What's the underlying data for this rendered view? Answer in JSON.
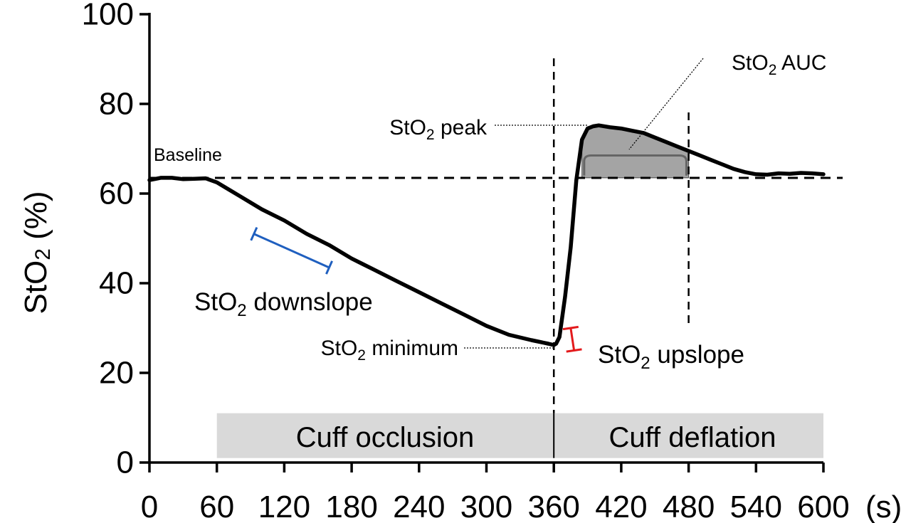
{
  "chart_data": {
    "type": "line",
    "title": "",
    "xlabel": "",
    "x_unit": "(s)",
    "ylabel": "StO",
    "ylabel_sub": "2",
    "ylabel_suffix": " (%)",
    "xlim": [
      0,
      600
    ],
    "ylim": [
      0,
      100
    ],
    "x_ticks": [
      0,
      60,
      120,
      180,
      240,
      300,
      360,
      420,
      480,
      540,
      600
    ],
    "x_tick_labels": [
      "0",
      "60",
      "120",
      "180",
      "240",
      "300",
      "360",
      "420",
      "480",
      "540",
      "600"
    ],
    "y_ticks": [
      0,
      20,
      40,
      60,
      80,
      100
    ],
    "y_tick_labels": [
      "0",
      "20",
      "40",
      "60",
      "80",
      "100"
    ],
    "grid": false,
    "series": [
      {
        "name": "StO2",
        "color": "#000000",
        "x": [
          0,
          10,
          20,
          30,
          40,
          50,
          60,
          70,
          80,
          90,
          100,
          120,
          140,
          160,
          180,
          200,
          220,
          240,
          260,
          280,
          300,
          320,
          340,
          355,
          360,
          362,
          365,
          370,
          375,
          380,
          385,
          390,
          395,
          400,
          410,
          420,
          430,
          440,
          450,
          460,
          470,
          480,
          490,
          500,
          510,
          520,
          530,
          540,
          550,
          560,
          570,
          580,
          590,
          600
        ],
        "y": [
          63,
          63.5,
          63.5,
          63.2,
          63.3,
          63.4,
          62.5,
          61,
          59.5,
          58,
          56.5,
          54,
          51,
          48.5,
          45.5,
          43,
          40.5,
          38,
          35.5,
          33,
          30.5,
          28.5,
          27.3,
          26.5,
          26.2,
          26.5,
          28,
          37,
          48,
          63,
          72,
          74.5,
          75,
          75.2,
          74.8,
          74.5,
          74,
          73.5,
          72.5,
          71.5,
          70.5,
          69.5,
          68.5,
          67.5,
          66.5,
          65.5,
          64.8,
          64.3,
          64.2,
          64.5,
          64.4,
          64.6,
          64.5,
          64.3
        ]
      }
    ],
    "baseline_value": 63.5,
    "reference_lines_x": [
      360,
      480
    ],
    "auc_region": {
      "x_start": 385,
      "x_end": 480,
      "floor": 63.5
    },
    "downslope_segment": {
      "x": [
        93,
        160
      ],
      "y": [
        51,
        43.5
      ],
      "color": "#1f5fbf"
    },
    "upslope_marker": {
      "x": [
        375,
        378
      ],
      "y": [
        30,
        25
      ],
      "color": "#e31a1c"
    },
    "bands": [
      {
        "label": "Cuff occlusion",
        "x_start": 60,
        "x_end": 360,
        "y_bottom": 1,
        "y_top": 11,
        "color": "#d9d9d9"
      },
      {
        "label": "Cuff deflation",
        "x_start": 360,
        "x_end": 600,
        "y_bottom": 1,
        "y_top": 11,
        "color": "#d9d9d9"
      }
    ],
    "annotations": {
      "baseline": "Baseline",
      "downslope_main": "StO",
      "downslope_sub": "2",
      "downslope_rest": " downslope",
      "minimum_main": "StO",
      "minimum_sub": "2",
      "minimum_rest": " minimum",
      "upslope_main": "StO",
      "upslope_sub": "2",
      "upslope_rest": " upslope",
      "peak_main": "StO",
      "peak_sub": "2",
      "peak_rest": " peak",
      "auc_main": "StO",
      "auc_sub": "2",
      "auc_rest": " AUC"
    }
  }
}
